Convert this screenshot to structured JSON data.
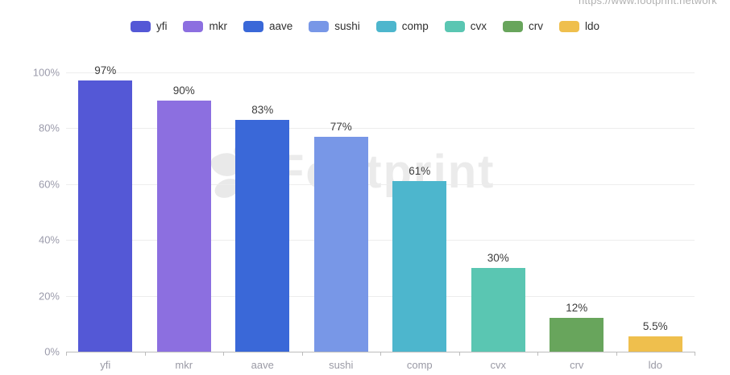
{
  "page": {
    "url_watermark": "https://www.footprint.network"
  },
  "watermark": {
    "text": "Footprint",
    "color": "#ebebeb"
  },
  "legend": {
    "position": "top",
    "items": [
      {
        "label": "yfi",
        "color": "#5458d6"
      },
      {
        "label": "mkr",
        "color": "#8c6fe0"
      },
      {
        "label": "aave",
        "color": "#3a68d8"
      },
      {
        "label": "sushi",
        "color": "#7897e7"
      },
      {
        "label": "comp",
        "color": "#4db6cd"
      },
      {
        "label": "cvx",
        "color": "#5ac6b2"
      },
      {
        "label": "crv",
        "color": "#68a55c"
      },
      {
        "label": "ldo",
        "color": "#efbf4d"
      }
    ]
  },
  "chart_data": {
    "type": "bar",
    "title": "",
    "xlabel": "",
    "ylabel": "",
    "categories": [
      "yfi",
      "mkr",
      "aave",
      "sushi",
      "comp",
      "cvx",
      "crv",
      "ldo"
    ],
    "values": [
      97,
      90,
      83,
      77,
      61,
      30,
      12,
      5.5
    ],
    "value_labels": [
      "97%",
      "90%",
      "83%",
      "77%",
      "61%",
      "30%",
      "12%",
      "5.5%"
    ],
    "bar_colors": [
      "#5458d6",
      "#8c6fe0",
      "#3a68d8",
      "#7897e7",
      "#4db6cd",
      "#5ac6b2",
      "#68a55c",
      "#efbf4d"
    ],
    "ylim": [
      0,
      100
    ],
    "yticks": [
      {
        "value": 0,
        "label": "0%"
      },
      {
        "value": 20,
        "label": "20%"
      },
      {
        "value": 40,
        "label": "40%"
      },
      {
        "value": 60,
        "label": "60%"
      },
      {
        "value": 80,
        "label": "80%"
      },
      {
        "value": 100,
        "label": "100%"
      }
    ],
    "grid": true,
    "legend_position": "top"
  }
}
